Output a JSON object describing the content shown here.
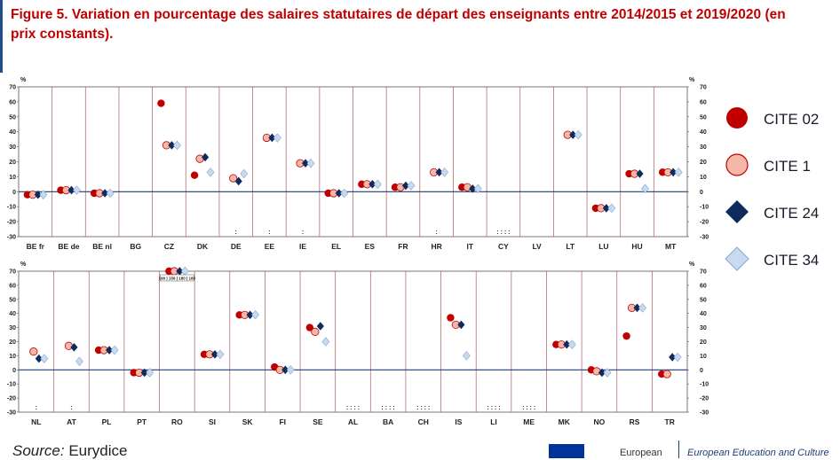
{
  "title": "Figure 5. Variation  en pourcentage des salaires statutaires de départ des enseignants entre 2014/2015 et 2019/2020 (en prix constants).",
  "source_label": "Source:",
  "source_text": " Eurydice",
  "footer": {
    "org": "European",
    "eac": "European Education and Culture"
  },
  "colors": {
    "cite02": "#c00000",
    "cite1": "#f5b8a8",
    "cite24": "#0f2a5c",
    "cite34": "#c7daf0",
    "grid": "#b07070"
  },
  "legend": [
    {
      "key": "cite02",
      "label": "CITE 02",
      "marker": "circle"
    },
    {
      "key": "cite1",
      "label": "CITE 1",
      "marker": "circle"
    },
    {
      "key": "cite24",
      "label": "CITE 24",
      "marker": "diamond"
    },
    {
      "key": "cite34",
      "label": "CITE 34",
      "marker": "diamond"
    }
  ],
  "chart_data": [
    {
      "type": "scatter",
      "unit": "%",
      "ylim": [
        -30,
        70
      ],
      "yticks": [
        70,
        60,
        50,
        40,
        30,
        20,
        10,
        0,
        -10,
        -20,
        -30
      ],
      "categories": [
        "BE fr",
        "BE de",
        "BE nl",
        "BG",
        "CZ",
        "DK",
        "DE",
        "EE",
        "IE",
        "EL",
        "ES",
        "FR",
        "HR",
        "IT",
        "CY",
        "LV",
        "LT",
        "LU",
        "HU",
        "MT"
      ],
      "series": [
        {
          "name": "CITE 02",
          "values": [
            -2,
            1,
            -1,
            null,
            59,
            11,
            null,
            null,
            null,
            -1,
            5,
            3,
            null,
            3,
            null,
            null,
            null,
            -11,
            12,
            13
          ]
        },
        {
          "name": "CITE 1",
          "values": [
            -2,
            1,
            -1,
            null,
            31,
            22,
            9,
            36,
            19,
            -1,
            5,
            3,
            13,
            3,
            null,
            null,
            38,
            -11,
            12,
            13
          ]
        },
        {
          "name": "CITE 24",
          "values": [
            -2,
            1,
            -1,
            null,
            31,
            23,
            7,
            36,
            19,
            -1,
            5,
            4,
            13,
            2,
            null,
            null,
            38,
            -11,
            12,
            13
          ]
        },
        {
          "name": "CITE 34",
          "values": [
            -2,
            1,
            -1,
            null,
            31,
            13,
            12,
            36,
            19,
            -1,
            5,
            4,
            13,
            2,
            null,
            null,
            38,
            -11,
            2,
            13
          ]
        }
      ],
      "marks": [
        {
          "category": "DE",
          "text": ":"
        },
        {
          "category": "EE",
          "text": ":"
        },
        {
          "category": "IE",
          "text": ":"
        },
        {
          "category": "HR",
          "text": ":"
        },
        {
          "category": "CY",
          "text": ": : : :"
        }
      ]
    },
    {
      "type": "scatter",
      "unit": "%",
      "ylim": [
        -30,
        70
      ],
      "yticks": [
        70,
        60,
        50,
        40,
        30,
        20,
        10,
        0,
        -10,
        -20,
        -30
      ],
      "categories": [
        "NL",
        "AT",
        "PL",
        "PT",
        "RO",
        "SI",
        "SK",
        "FI",
        "SE",
        "AL",
        "BA",
        "CH",
        "IS",
        "LI",
        "ME",
        "MK",
        "NO",
        "RS",
        "TR"
      ],
      "series": [
        {
          "name": "CITE 02",
          "values": [
            null,
            null,
            14,
            -2,
            71,
            11,
            39,
            2,
            30,
            null,
            null,
            null,
            37,
            null,
            null,
            18,
            0,
            24,
            -3
          ]
        },
        {
          "name": "CITE 1",
          "values": [
            13,
            17,
            14,
            -2,
            71,
            11,
            39,
            0,
            27,
            null,
            null,
            null,
            32,
            null,
            null,
            18,
            -1,
            44,
            -3
          ]
        },
        {
          "name": "CITE 24",
          "values": [
            8,
            16,
            14,
            -2,
            71,
            11,
            39,
            0,
            31,
            null,
            null,
            null,
            32,
            null,
            null,
            18,
            -2,
            44,
            9
          ]
        },
        {
          "name": "CITE 34",
          "values": [
            8,
            6,
            14,
            -2,
            71,
            11,
            39,
            0,
            20,
            null,
            null,
            null,
            10,
            null,
            null,
            18,
            -2,
            44,
            9
          ]
        }
      ],
      "marks": [
        {
          "category": "NL",
          "text": ":"
        },
        {
          "category": "AT",
          "text": ":"
        },
        {
          "category": "AL",
          "text": ": : : :"
        },
        {
          "category": "BA",
          "text": ": : : :"
        },
        {
          "category": "CH",
          "text": ": : : :"
        },
        {
          "category": "LI",
          "text": ": : : :"
        },
        {
          "category": "ME",
          "text": ": : : :"
        }
      ],
      "annotations": [
        {
          "category": "RO",
          "text": "190 | 156 | 180 | 180"
        }
      ]
    }
  ]
}
